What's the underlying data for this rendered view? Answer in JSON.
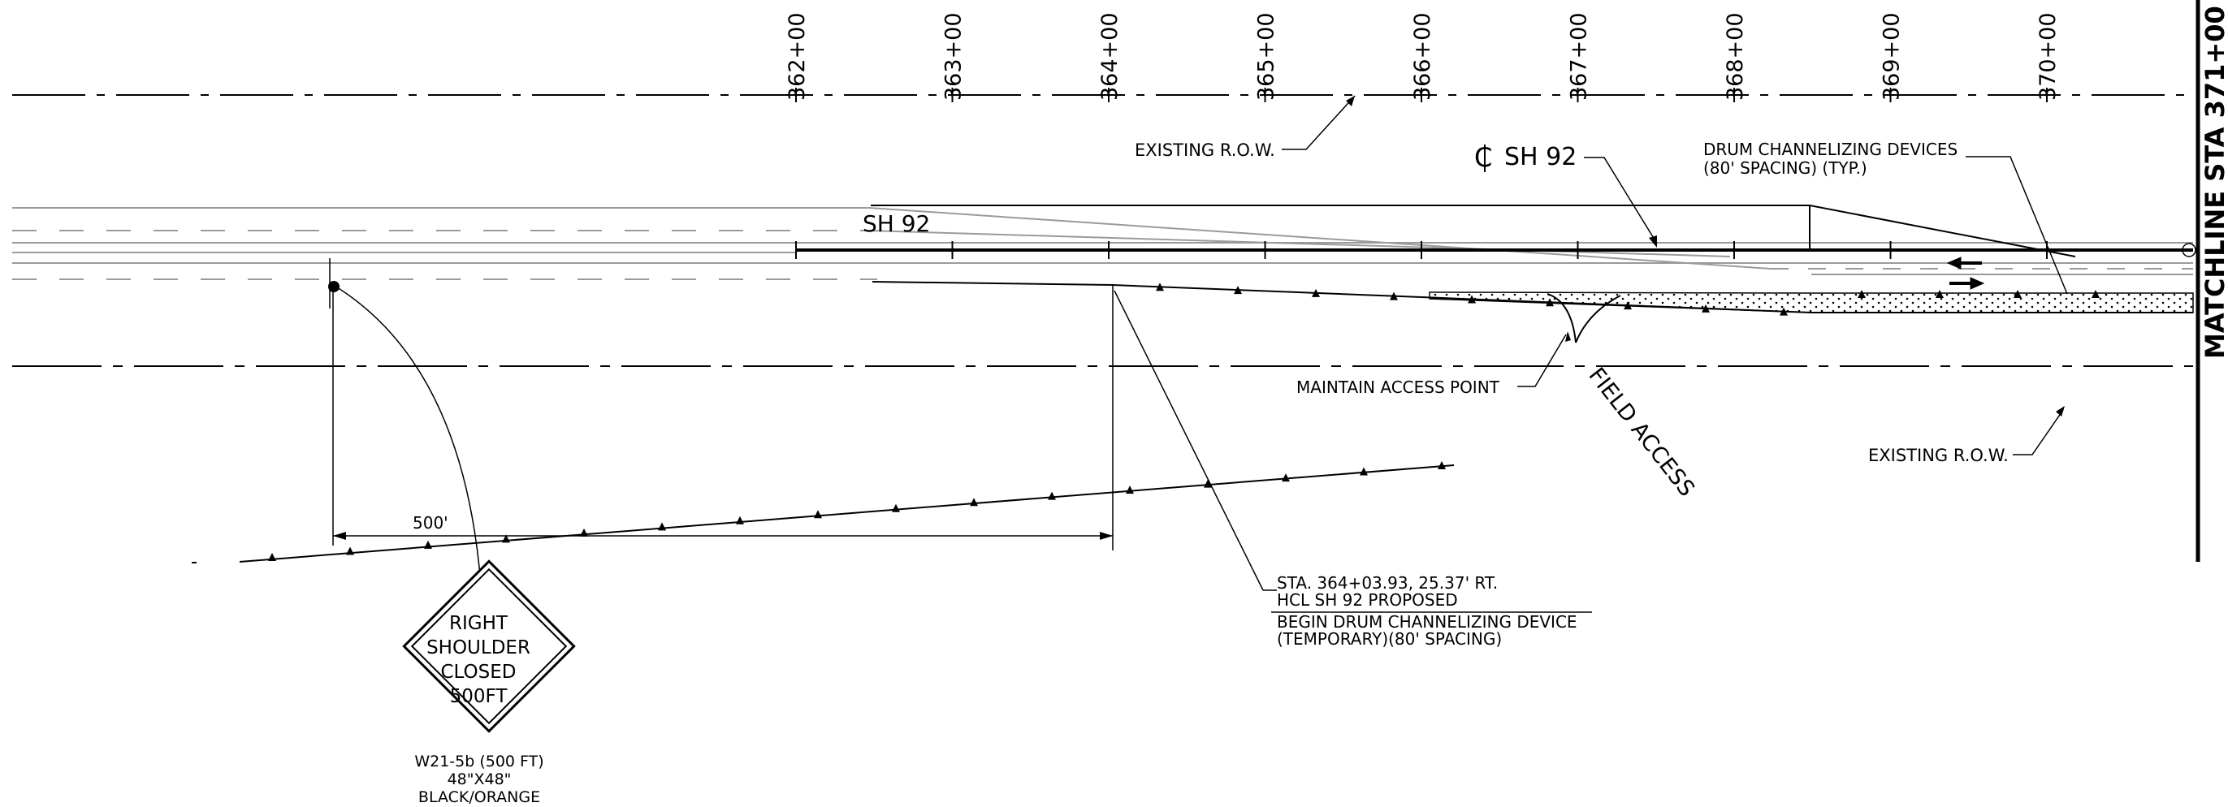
{
  "stations": [
    "362+00",
    "363+00",
    "364+00",
    "365+00",
    "366+00",
    "367+00",
    "368+00",
    "369+00",
    "370+00",
    "371+00"
  ],
  "roadway": {
    "name_label": "SH 92",
    "centerline_label": "SH 92"
  },
  "callouts": {
    "existing_row_top": "EXISTING R.O.W.",
    "existing_row_bottom": "EXISTING R.O.W.",
    "drum_line1": "DRUM CHANNELIZING DEVICES",
    "drum_line2": "(80' SPACING) (TYP.)",
    "maintain_access": "MAINTAIN ACCESS POINT",
    "field_access": "FIELD ACCESS",
    "begin_line1": "STA. 364+03.93, 25.37' RT.",
    "begin_line2": "HCL SH 92 PROPOSED",
    "begin_line3": "BEGIN DRUM CHANNELIZING DEVICE",
    "begin_line4": "(TEMPORARY)(80' SPACING)",
    "dimension": "500'"
  },
  "matchline": "MATCHLINE STA 371+00",
  "sign": {
    "face_lines": [
      "RIGHT",
      "SHOULDER",
      "CLOSED",
      "500FT"
    ],
    "code": "W21-5b (500 FT)",
    "size": "48\"X48\"",
    "colors": "BLACK/ORANGE",
    "face_color": "#ffffff"
  }
}
